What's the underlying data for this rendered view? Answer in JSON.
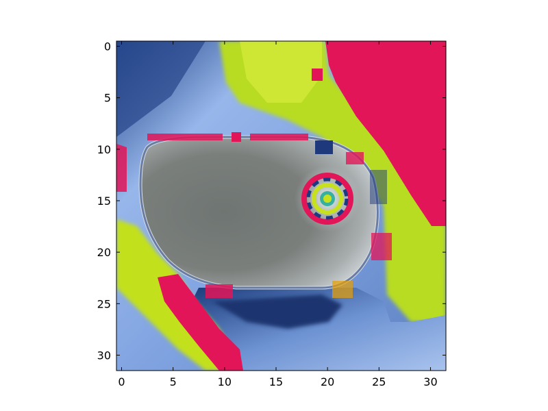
{
  "image": {
    "description": "32x32 pixel image rendered as a plot: gray rounded blob center-left, colorful ring on right, yellow-green diagonal bands, pink/red regions top-right and bottom-left, blue gradient background",
    "palette": {
      "blue_dark": "#1a3a7a",
      "blue_mid": "#5b7fc0",
      "blue_light": "#9fbbea",
      "yellow_green": "#c8e11e",
      "lime": "#a8d018",
      "pink_red": "#e8185a",
      "gray_dark": "#6f7570",
      "gray_light": "#b8bcbc"
    }
  },
  "axes": {
    "x_ticks": [
      "0",
      "5",
      "10",
      "15",
      "20",
      "25",
      "30"
    ],
    "y_ticks": [
      "0",
      "5",
      "10",
      "15",
      "20",
      "25",
      "30"
    ],
    "xlim": [
      -0.5,
      31.5
    ],
    "ylim": [
      31.5,
      -0.5
    ]
  }
}
